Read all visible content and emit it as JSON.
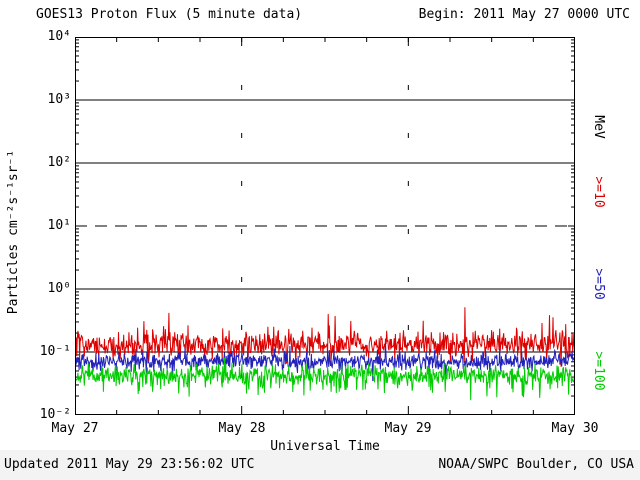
{
  "header": {
    "title": "GOES13 Proton Flux (5 minute data)",
    "begin": "Begin: 2011 May 27 0000 UTC"
  },
  "footer": {
    "updated": "Updated 2011 May 29 23:56:02 UTC",
    "source": "NOAA/SWPC Boulder, CO USA"
  },
  "chart_data": {
    "type": "line",
    "title": "GOES13 Proton Flux (5 minute data)",
    "xlabel": "Universal Time",
    "ylabel": "Particles cm⁻²s⁻¹sr⁻¹",
    "right_axis_label": "MeV",
    "x_ticks": [
      "May 27",
      "May 28",
      "May 29",
      "May 30"
    ],
    "y_ticks": [
      "10⁴",
      "10³",
      "10²",
      "10¹",
      "10⁰",
      "10⁻¹",
      "10⁻²"
    ],
    "y_log_range": [
      -2,
      4
    ],
    "x_range_days": 3,
    "points_per_day": 288,
    "grid": {
      "solid_decades": [
        3,
        2,
        0,
        -1
      ],
      "dashed_decades": [
        1
      ],
      "vertical_dotted_days": [
        1,
        2
      ]
    },
    "series": [
      {
        "name": ">=10",
        "color": "#dd0000",
        "approx_range": [
          0.06,
          0.45
        ],
        "log10_mean": -0.88,
        "log10_sigma": 0.11,
        "spike_prob": 0.04,
        "spike_amp": 0.45,
        "spike_dir": 1,
        "seed": 101
      },
      {
        "name": ">=50",
        "color": "#2222bb",
        "approx_range": [
          0.04,
          0.12
        ],
        "log10_mean": -1.14,
        "log10_sigma": 0.07,
        "spike_prob": 0.04,
        "spike_amp": 0.15,
        "spike_dir": -1,
        "seed": 202
      },
      {
        "name": ">=100",
        "color": "#00cc00",
        "approx_range": [
          0.02,
          0.07
        ],
        "log10_mean": -1.36,
        "log10_sigma": 0.08,
        "spike_prob": 0.1,
        "spike_amp": 0.3,
        "spike_dir": -1,
        "seed": 303
      }
    ]
  }
}
